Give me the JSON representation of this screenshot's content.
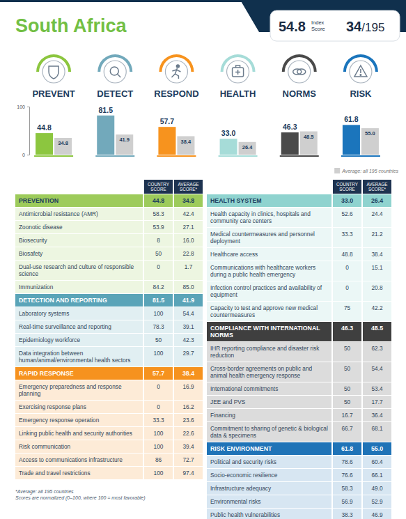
{
  "header": {
    "country": "South Africa",
    "score": 54.8,
    "score_label": [
      "Index",
      "Score"
    ],
    "rank": "34/195"
  },
  "chart_data": {
    "type": "bar",
    "categories": [
      "PREVENT",
      "DETECT",
      "RESPOND",
      "HEALTH",
      "NORMS",
      "RISK"
    ],
    "series": [
      {
        "colors": [
          "#8cc63f",
          "#72a9bb",
          "#f7931e",
          "#a6dcd8",
          "#4a4a4a",
          "#1b75bc"
        ],
        "values": [
          44.8,
          81.5,
          57.7,
          33.0,
          46.3,
          61.8
        ],
        "value_labels": [
          "44.8",
          "81.5",
          "57.7",
          "33.0",
          "46.3",
          "61.8"
        ]
      },
      {
        "name": "Average: all 195 countries",
        "color": "#cfcfcf",
        "values": [
          34.8,
          41.9,
          38.4,
          26.4,
          48.5,
          55.0
        ],
        "value_labels": [
          "34.8",
          "41.9",
          "38.4",
          "26.4",
          "48.5",
          "55.0"
        ]
      }
    ],
    "ylim": [
      0,
      100
    ],
    "yticks": [
      0,
      100
    ],
    "data_labels": true,
    "legend": "bottom-right"
  },
  "tables": [
    {
      "columns": [
        "COUNTRY SCORE",
        "AVERAGE SCORE*"
      ],
      "sections": [
        {
          "title": "PREVENTION",
          "color": "#9dcb5b",
          "score": "44.8",
          "average": "34.8",
          "rows": [
            [
              "Antimicrobial resistance (AMR)",
              "58.3",
              "42.4"
            ],
            [
              "Zoonotic disease",
              "53.9",
              "27.1"
            ],
            [
              "Biosecurity",
              "8",
              "16.0"
            ],
            [
              "Biosafety",
              "50",
              "22.8"
            ],
            [
              "Dual-use research and culture of responsible science",
              "0",
              "1.7"
            ],
            [
              "Immunization",
              "84.2",
              "85.0"
            ]
          ]
        },
        {
          "title": "DETECTION AND REPORTING",
          "color": "#5aa4b8",
          "score": "81.5",
          "average": "41.9",
          "rows": [
            [
              "Laboratory systems",
              "100",
              "54.4"
            ],
            [
              "Real-time surveillance and reporting",
              "78.3",
              "39.1"
            ],
            [
              "Epidemiology workforce",
              "50",
              "42.3"
            ],
            [
              "Data integration between human/animal/environmental health sectors",
              "100",
              "29.7"
            ]
          ]
        },
        {
          "title": "RAPID RESPONSE",
          "color": "#f6921e",
          "score": "57.7",
          "average": "38.4",
          "rows": [
            [
              "Emergency preparedness and response planning",
              "0",
              "16.9"
            ],
            [
              "Exercising response plans",
              "0",
              "16.2"
            ],
            [
              "Emergency response operation",
              "33.3",
              "23.6"
            ],
            [
              "Linking public health and security authorities",
              "100",
              "22.6"
            ],
            [
              "Risk communication",
              "100",
              "39.4"
            ],
            [
              "Access to communications infrastructure",
              "86",
              "72.7"
            ],
            [
              "Trade and travel restrictions",
              "100",
              "97.4"
            ]
          ]
        }
      ],
      "notes": [
        "*Average: all 195 countries",
        "Scores are normalized (0–100, where 100 = most favorable)"
      ]
    },
    {
      "columns": [
        "COUNTRY SCORE",
        "AVERAGE SCORE*"
      ],
      "sections": [
        {
          "title": "HEALTH SYSTEM",
          "color": "#8fd3cf",
          "score": "33.0",
          "average": "26.4",
          "rows": [
            [
              "Health capacity in clinics, hospitals and community care centers",
              "52.6",
              "24.4"
            ],
            [
              "Medical countermeasures and personnel deployment",
              "33.3",
              "21.2"
            ],
            [
              "Healthcare access",
              "48.8",
              "38.4"
            ],
            [
              "Communications with healthcare workers during a public health emergency",
              "0",
              "15.1"
            ],
            [
              "Infection control practices and availability of equipment",
              "0",
              "20.8"
            ],
            [
              "Capacity to test and approve new medical countermeasures",
              "75",
              "42.2"
            ]
          ]
        },
        {
          "title": "COMPLIANCE WITH INTERNATIONAL NORMS",
          "color": "#3f3f3f",
          "score": "46.3",
          "average": "48.5",
          "rows": [
            [
              "IHR reporting compliance and disaster risk reduction",
              "50",
              "62.3"
            ],
            [
              "Cross-border agreements on public and animal health emergency response",
              "50",
              "54.4"
            ],
            [
              "International commitments",
              "50",
              "53.4"
            ],
            [
              "JEE and PVS",
              "50",
              "17.7"
            ],
            [
              "Financing",
              "16.7",
              "36.4"
            ],
            [
              "Commitment to sharing of genetic & biological data & specimens",
              "66.7",
              "68.1"
            ]
          ]
        },
        {
          "title": "RISK ENVIRONMENT",
          "color": "#1f73b7",
          "score": "61.8",
          "average": "55.0",
          "rows": [
            [
              "Political and security risks",
              "78.6",
              "60.4"
            ],
            [
              "Socio-economic resilience",
              "76.6",
              "66.1"
            ],
            [
              "Infrastructure adequacy",
              "58.3",
              "49.0"
            ],
            [
              "Environmental risks",
              "56.9",
              "52.9"
            ],
            [
              "Public health vulnerabilities",
              "38.3",
              "46.9"
            ]
          ]
        }
      ]
    }
  ]
}
